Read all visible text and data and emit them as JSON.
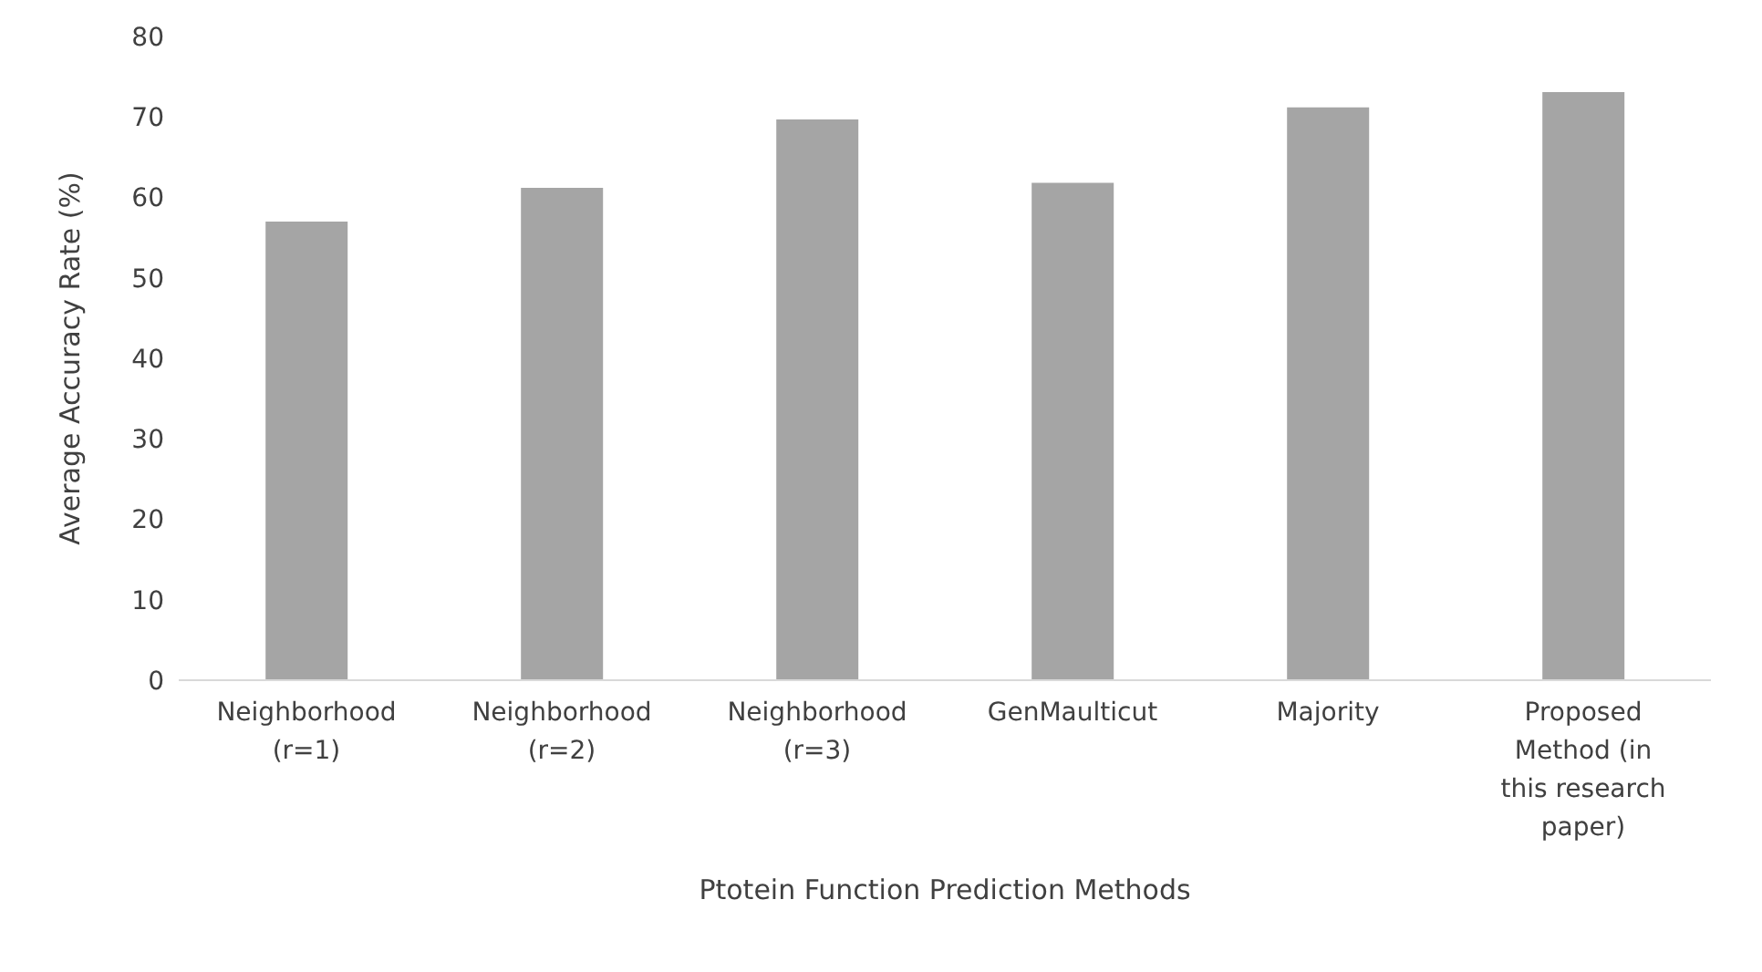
{
  "chart_data": {
    "type": "bar",
    "xlabel": "Ptotein Function Prediction Methods",
    "ylabel": "Average Accuracy Rate (%)",
    "categories": [
      "Neighborhood (r=1)",
      "Neighborhood (r=2)",
      "Neighborhood (r=3)",
      "GenMaulticut",
      "Majority",
      "Proposed Method (in this research paper)"
    ],
    "values": [
      57.0,
      61.2,
      69.7,
      61.8,
      71.2,
      73.1
    ],
    "color": "#a5a5a5",
    "ylim": [
      0,
      80
    ],
    "yticks": [
      0,
      10,
      20,
      30,
      40,
      50,
      60,
      70,
      80
    ],
    "grid": false,
    "legend": false
  }
}
